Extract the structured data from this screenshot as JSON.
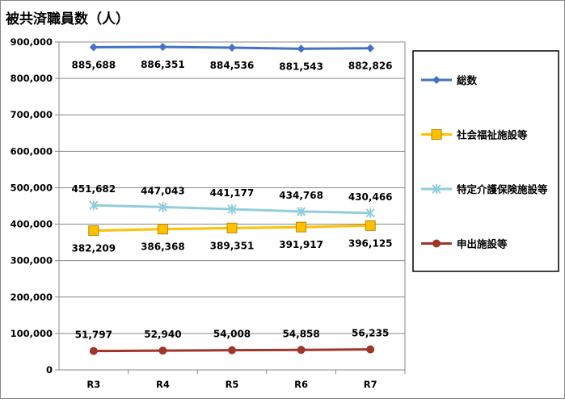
{
  "chart_data": {
    "type": "line",
    "title": "被共済職員数（人）",
    "categories": [
      "R3",
      "R4",
      "R5",
      "R6",
      "R7"
    ],
    "ylim": [
      0,
      900000
    ],
    "yticks": [
      0,
      100000,
      200000,
      300000,
      400000,
      500000,
      600000,
      700000,
      800000,
      900000
    ],
    "ytick_labels": [
      "0",
      "100,000",
      "200,000",
      "300,000",
      "400,000",
      "500,000",
      "600,000",
      "700,000",
      "800,000",
      "900,000"
    ],
    "grid": true,
    "legend_position": "right",
    "series": [
      {
        "name": "総数",
        "values": [
          885688,
          886351,
          884536,
          881543,
          882826
        ],
        "labels": [
          "885,688",
          "886,351",
          "884,536",
          "881,543",
          "882,826"
        ],
        "color": "#4472C4",
        "marker": "diamond",
        "label_pos": "below"
      },
      {
        "name": "社会福祉施設等",
        "values": [
          382209,
          386368,
          389351,
          391917,
          396125
        ],
        "labels": [
          "382,209",
          "386,368",
          "389,351",
          "391,917",
          "396,125"
        ],
        "color": "#FFC000",
        "marker": "square",
        "label_pos": "below"
      },
      {
        "name": "特定介護保険施設等",
        "values": [
          451682,
          447043,
          441177,
          434768,
          430466
        ],
        "labels": [
          "451,682",
          "447,043",
          "441,177",
          "434,768",
          "430,466"
        ],
        "color": "#92CDDC",
        "marker": "star",
        "label_pos": "above"
      },
      {
        "name": "申出施設等",
        "values": [
          51797,
          52940,
          54008,
          54858,
          56235
        ],
        "labels": [
          "51,797",
          "52,940",
          "54,008",
          "54,858",
          "56,235"
        ],
        "color": "#A0352A",
        "marker": "circle",
        "label_pos": "above"
      }
    ]
  }
}
